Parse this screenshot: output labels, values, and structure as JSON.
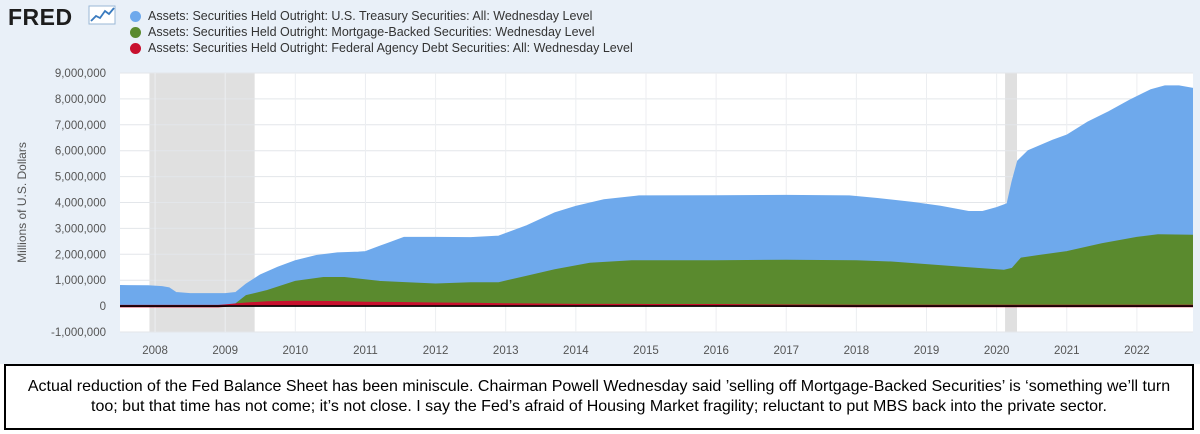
{
  "header": {
    "logo_text": "FRED",
    "logo_mark_icon": "fred-chart-line-icon"
  },
  "caption": {
    "text": "Actual reduction of the Fed Balance Sheet has been miniscule. Chairman Powell Wednesday said ’selling off Mortgage-Backed Securities’ is ‘something we’ll turn too; but that time has not come; it’s not close. I say the Fed’s afraid of Housing Market fragility; reluctant to put MBS back into the private sector."
  },
  "chart_data": {
    "type": "area",
    "stacked": false,
    "title": "",
    "xlabel": "",
    "ylabel": "Millions of U.S. Dollars",
    "xlim": [
      2007.5,
      2022.8
    ],
    "ylim": [
      -1000000,
      9000000
    ],
    "y_ticks": [
      "9,000,000",
      "8,000,000",
      "7,000,000",
      "6,000,000",
      "5,000,000",
      "4,000,000",
      "3,000,000",
      "2,000,000",
      "1,000,000",
      "0",
      "-1,000,000"
    ],
    "y_tick_values": [
      9000000,
      8000000,
      7000000,
      6000000,
      5000000,
      4000000,
      3000000,
      2000000,
      1000000,
      0,
      -1000000
    ],
    "x_ticks": [
      "2008",
      "2009",
      "2010",
      "2011",
      "2012",
      "2013",
      "2014",
      "2015",
      "2016",
      "2017",
      "2018",
      "2019",
      "2020",
      "2021",
      "2022"
    ],
    "x_tick_values": [
      2008,
      2009,
      2010,
      2011,
      2012,
      2013,
      2014,
      2015,
      2016,
      2017,
      2018,
      2019,
      2020,
      2021,
      2022
    ],
    "grid": true,
    "legend_position": "top-left",
    "recessions": [
      {
        "start": 2007.92,
        "end": 2009.42
      },
      {
        "start": 2020.12,
        "end": 2020.29
      }
    ],
    "series": [
      {
        "name": "Assets: Securities Held Outright: U.S. Treasury Securities: All: Wednesday Level",
        "color": "#6ea9ec",
        "points": [
          [
            2007.5,
            790000
          ],
          [
            2007.9,
            780000
          ],
          [
            2008.1,
            750000
          ],
          [
            2008.2,
            700000
          ],
          [
            2008.3,
            520000
          ],
          [
            2008.5,
            480000
          ],
          [
            2009.0,
            480000
          ],
          [
            2009.15,
            520000
          ],
          [
            2009.3,
            850000
          ],
          [
            2009.5,
            1200000
          ],
          [
            2009.75,
            1500000
          ],
          [
            2010.0,
            1750000
          ],
          [
            2010.3,
            1950000
          ],
          [
            2010.6,
            2050000
          ],
          [
            2010.9,
            2080000
          ],
          [
            2011.0,
            2100000
          ],
          [
            2011.3,
            2400000
          ],
          [
            2011.55,
            2650000
          ],
          [
            2012.0,
            2650000
          ],
          [
            2012.5,
            2640000
          ],
          [
            2012.9,
            2700000
          ],
          [
            2013.3,
            3100000
          ],
          [
            2013.7,
            3600000
          ],
          [
            2014.0,
            3850000
          ],
          [
            2014.4,
            4100000
          ],
          [
            2014.9,
            4250000
          ],
          [
            2016.0,
            4260000
          ],
          [
            2017.0,
            4270000
          ],
          [
            2017.9,
            4250000
          ],
          [
            2018.3,
            4150000
          ],
          [
            2018.8,
            4000000
          ],
          [
            2019.2,
            3850000
          ],
          [
            2019.6,
            3650000
          ],
          [
            2019.8,
            3650000
          ],
          [
            2020.0,
            3800000
          ],
          [
            2020.15,
            3950000
          ],
          [
            2020.22,
            4800000
          ],
          [
            2020.3,
            5600000
          ],
          [
            2020.45,
            6000000
          ],
          [
            2020.8,
            6400000
          ],
          [
            2021.0,
            6600000
          ],
          [
            2021.3,
            7100000
          ],
          [
            2021.6,
            7500000
          ],
          [
            2021.9,
            7950000
          ],
          [
            2022.2,
            8350000
          ],
          [
            2022.4,
            8500000
          ],
          [
            2022.6,
            8500000
          ],
          [
            2022.8,
            8400000
          ]
        ]
      },
      {
        "name": "Assets: Securities Held Outright: Mortgage-Backed Securities: Wednesday Level",
        "color": "#5a8a2e",
        "points": [
          [
            2007.5,
            0
          ],
          [
            2009.0,
            0
          ],
          [
            2009.15,
            80000
          ],
          [
            2009.3,
            400000
          ],
          [
            2009.6,
            600000
          ],
          [
            2010.0,
            950000
          ],
          [
            2010.4,
            1100000
          ],
          [
            2010.7,
            1100000
          ],
          [
            2011.2,
            950000
          ],
          [
            2011.6,
            900000
          ],
          [
            2012.0,
            850000
          ],
          [
            2012.5,
            900000
          ],
          [
            2012.9,
            900000
          ],
          [
            2013.3,
            1150000
          ],
          [
            2013.7,
            1400000
          ],
          [
            2014.2,
            1650000
          ],
          [
            2014.8,
            1750000
          ],
          [
            2016.0,
            1750000
          ],
          [
            2017.0,
            1770000
          ],
          [
            2018.0,
            1750000
          ],
          [
            2018.5,
            1700000
          ],
          [
            2019.0,
            1600000
          ],
          [
            2019.5,
            1500000
          ],
          [
            2020.1,
            1380000
          ],
          [
            2020.22,
            1450000
          ],
          [
            2020.35,
            1850000
          ],
          [
            2020.6,
            1950000
          ],
          [
            2021.0,
            2100000
          ],
          [
            2021.5,
            2400000
          ],
          [
            2022.0,
            2650000
          ],
          [
            2022.3,
            2750000
          ],
          [
            2022.8,
            2730000
          ]
        ]
      },
      {
        "name": "Assets: Securities Held Outright: Federal Agency Debt Securities: All: Wednesday Level",
        "color": "#c8102e",
        "points": [
          [
            2007.5,
            0
          ],
          [
            2008.9,
            0
          ],
          [
            2009.0,
            20000
          ],
          [
            2009.3,
            90000
          ],
          [
            2009.6,
            140000
          ],
          [
            2010.0,
            160000
          ],
          [
            2010.5,
            150000
          ],
          [
            2011.0,
            120000
          ],
          [
            2011.5,
            110000
          ],
          [
            2012.0,
            90000
          ],
          [
            2012.5,
            80000
          ],
          [
            2013.0,
            60000
          ],
          [
            2013.5,
            50000
          ],
          [
            2014.0,
            40000
          ],
          [
            2014.5,
            40000
          ],
          [
            2015.0,
            35000
          ],
          [
            2016.0,
            30000
          ],
          [
            2017.0,
            10000
          ],
          [
            2018.0,
            5000
          ],
          [
            2019.0,
            3000
          ],
          [
            2020.0,
            2500
          ],
          [
            2022.8,
            2300
          ]
        ]
      }
    ]
  }
}
